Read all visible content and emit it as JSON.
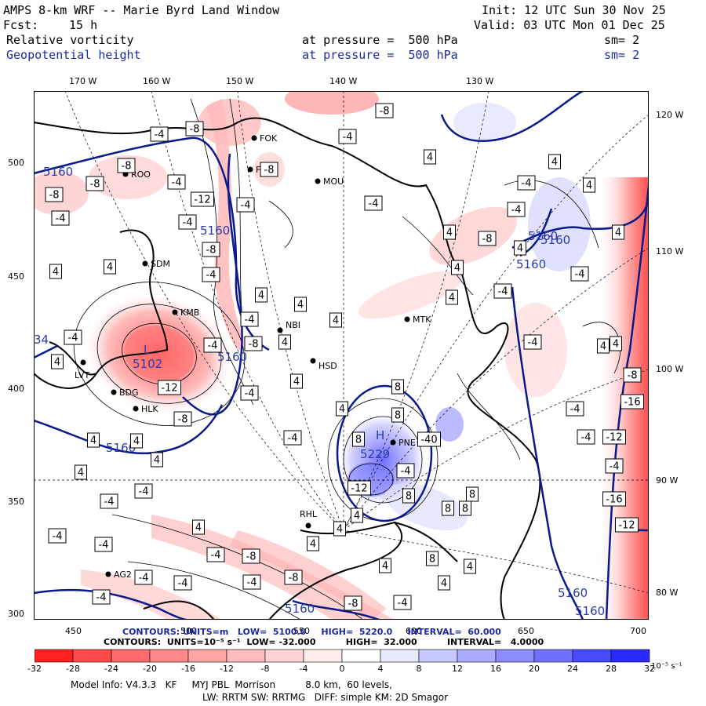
{
  "header": {
    "title": "AMPS 8-km WRF -- Marie Byrd Land Window",
    "init": "Init: 12 UTC Sun 30 Nov 25",
    "fcst_label": "Fcst:",
    "fcst_value": "15 h",
    "valid": "Valid: 03 UTC Mon 01 Dec 25",
    "field1_name": "Relative vorticity",
    "field1_level": "at pressure =  500 hPa",
    "field1_sm": "sm= 2",
    "field2_name": "Geopotential height",
    "field2_level": "at pressure =  500 hPa",
    "field2_sm": "sm= 2"
  },
  "axes": {
    "top_lon": [
      "170 W",
      "160 W",
      "150 W",
      "140 W",
      "130 W"
    ],
    "right_lon": [
      "120 W",
      "110 W",
      "100 W",
      "90 W",
      "80 W"
    ],
    "left_y": [
      "500",
      "450",
      "400",
      "350",
      "300"
    ],
    "bottom_x": [
      "450",
      "500",
      "550",
      "600",
      "650",
      "700"
    ]
  },
  "stations": [
    {
      "name": "FOK"
    },
    {
      "name": "FRM"
    },
    {
      "name": "MOU"
    },
    {
      "name": "ROO"
    },
    {
      "name": "SDM"
    },
    {
      "name": "KMB"
    },
    {
      "name": "NBI"
    },
    {
      "name": "MTK"
    },
    {
      "name": "LVT"
    },
    {
      "name": "HSD"
    },
    {
      "name": "BDG"
    },
    {
      "name": "HLK"
    },
    {
      "name": "PNE"
    },
    {
      "name": "RHL"
    },
    {
      "name": "AG2"
    }
  ],
  "height_labels": [
    "5160",
    "5160",
    "5160",
    "5160",
    "5160",
    "5160",
    "5160",
    "5102",
    "5229",
    "5160",
    "5160",
    "5160",
    "34"
  ],
  "centers": [
    {
      "label": "L"
    },
    {
      "label": "H"
    }
  ],
  "contour_info": {
    "height_line": "CONTOURS: UNITS=m   LOW=  5100.0     HIGH=  5220.0     INTERVAL=  60.000",
    "vort_line": "CONTOURS:  UNITS=10⁻⁵ s⁻¹  LOW= -32.000          HIGH=  32.000          INTERVAL=   4.0000"
  },
  "colorbar": {
    "labels": [
      "-32",
      "-28",
      "-24",
      "-20",
      "-16",
      "-12",
      "-8",
      "-4",
      "0",
      "4",
      "8",
      "12",
      "16",
      "20",
      "24",
      "28",
      "32"
    ],
    "units": "10⁻⁵ s⁻¹",
    "colors": [
      "#ff2020",
      "#ff4a4a",
      "#ff6a6a",
      "#ff8888",
      "#ffa4a4",
      "#ffbcbc",
      "#ffd4d4",
      "#ffecec",
      "#ffffff",
      "#e8e8ff",
      "#c8c8ff",
      "#aaaaff",
      "#8c8cff",
      "#6e6eff",
      "#4a4aff",
      "#2a2aff"
    ]
  },
  "footer": {
    "line1": "Model Info: V4.3.3   KF     MYJ PBL  Morrison          8.0 km,  60 levels,",
    "line2": "LW: RRTM SW: RRTMG   DIFF: simple KM: 2D Smagor"
  },
  "style": {
    "height_color": "#0a1a8c",
    "coast_color": "#000000",
    "positive_color": "#ff4040",
    "negative_color": "#3c3cff"
  }
}
